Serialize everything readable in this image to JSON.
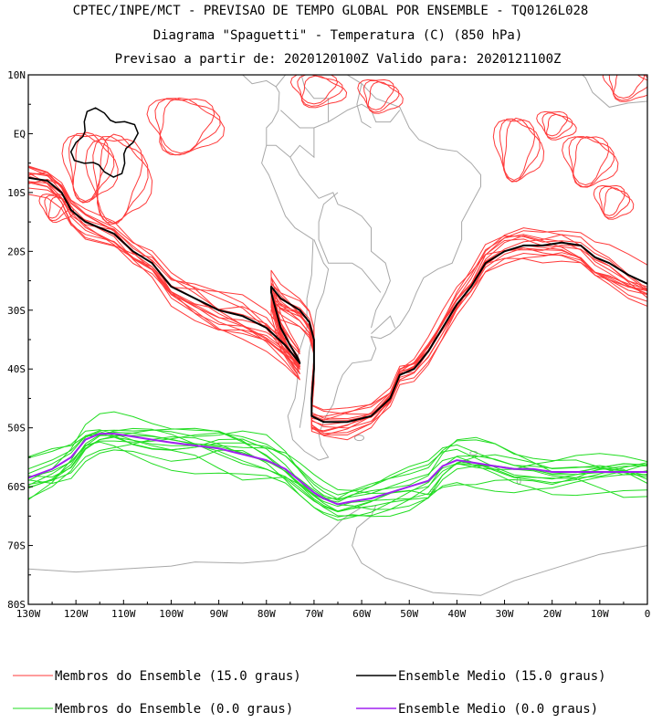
{
  "chart_data": {
    "type": "line",
    "title": "CPTEC/INPE/MCT - PREVISAO DE TEMPO GLOBAL POR ENSEMBLE - TQ0126L028",
    "subtitle": "Diagrama \"Spaguetti\" - Temperatura (C) (850 hPa)",
    "subtitle2": "Previsao a partir de: 2020120100Z  Valido para: 2020121100Z",
    "xlabel": "",
    "ylabel": "",
    "xlim": [
      -130,
      0
    ],
    "ylim": [
      -80,
      10
    ],
    "x_ticks": [
      {
        "value": -130,
        "label": "130W"
      },
      {
        "value": -120,
        "label": "120W"
      },
      {
        "value": -110,
        "label": "110W"
      },
      {
        "value": -100,
        "label": "100W"
      },
      {
        "value": -90,
        "label": "90W"
      },
      {
        "value": -80,
        "label": "80W"
      },
      {
        "value": -70,
        "label": "70W"
      },
      {
        "value": -60,
        "label": "60W"
      },
      {
        "value": -50,
        "label": "50W"
      },
      {
        "value": -40,
        "label": "40W"
      },
      {
        "value": -30,
        "label": "30W"
      },
      {
        "value": -20,
        "label": "20W"
      },
      {
        "value": -10,
        "label": "10W"
      },
      {
        "value": 0,
        "label": "0"
      }
    ],
    "y_ticks": [
      {
        "value": 10,
        "label": "10N"
      },
      {
        "value": 0,
        "label": "EQ"
      },
      {
        "value": -10,
        "label": "10S"
      },
      {
        "value": -20,
        "label": "20S"
      },
      {
        "value": -30,
        "label": "30S"
      },
      {
        "value": -40,
        "label": "40S"
      },
      {
        "value": -50,
        "label": "50S"
      },
      {
        "value": -60,
        "label": "60S"
      },
      {
        "value": -70,
        "label": "70S"
      },
      {
        "value": -80,
        "label": "80S"
      }
    ],
    "series": [
      {
        "name": "Ensemble Medio (15.0 graus)",
        "color": "#000000",
        "lon": [
          -130,
          -126,
          -123,
          -121,
          -118,
          -112,
          -108,
          -104,
          -100,
          -95,
          -90,
          -85,
          -80,
          -76,
          -74,
          -73,
          -73.5,
          -75,
          -77,
          -79,
          -79,
          -77,
          -73,
          -71,
          -70,
          -70,
          -70.5,
          -70.5,
          -68,
          -63,
          -58,
          -54,
          -52,
          -49,
          -46,
          -43,
          -40,
          -37,
          -34,
          -30,
          -26,
          -22,
          -18,
          -14,
          -11,
          -8,
          -4,
          0
        ],
        "lat": [
          -7.5,
          -8,
          -10,
          -13,
          -15,
          -17,
          -20,
          -22,
          -26,
          -28,
          -30,
          -31,
          -33,
          -36,
          -38,
          -39,
          -38,
          -36,
          -33,
          -27,
          -26,
          -28,
          -30,
          -32,
          -35,
          -40,
          -45,
          -48,
          -49,
          -49,
          -48,
          -45,
          -41,
          -40,
          -37,
          -33,
          -29,
          -26,
          -22,
          -20,
          -19,
          -19,
          -18.5,
          -19,
          -21,
          -22,
          -24,
          -25.5
        ]
      },
      {
        "name": "Ensemble Medio (0.0 graus)",
        "color": "#a020f0",
        "lon": [
          -130,
          -125,
          -121,
          -118,
          -115,
          -112,
          -108,
          -104,
          -100,
          -95,
          -90,
          -85,
          -80,
          -76,
          -73,
          -70,
          -68,
          -65,
          -62,
          -58,
          -54,
          -50,
          -46,
          -43,
          -40,
          -36,
          -32,
          -28,
          -24,
          -20,
          -15,
          -10,
          -5,
          0
        ],
        "lat": [
          -58.5,
          -57,
          -55,
          -52,
          -51,
          -51,
          -51.5,
          -52,
          -52.5,
          -53,
          -53.5,
          -54.5,
          -55.5,
          -57,
          -59,
          -61,
          -62,
          -63,
          -62.5,
          -62,
          -61,
          -60,
          -59,
          -56.5,
          -55.5,
          -56,
          -56.5,
          -57,
          -57,
          -57.5,
          -57.5,
          -57.5,
          -57.5,
          -57.5
        ]
      }
    ],
    "ensemble_groups": [
      {
        "name": "Membros do Ensemble (15.0 graus)",
        "color": "#ff3a3a"
      },
      {
        "name": "Membros do Ensemble (0.0 graus)",
        "color": "#22dd22"
      }
    ],
    "legend": [
      {
        "label": "Membros do Ensemble (15.0 graus)",
        "color": "#ff3a3a"
      },
      {
        "label": "Ensemble Medio (15.0 graus)",
        "color": "#000000"
      },
      {
        "label": "Membros do Ensemble (0.0 graus)",
        "color": "#22dd22"
      },
      {
        "label": "Ensemble Medio (0.0 graus)",
        "color": "#a020f0"
      }
    ]
  }
}
